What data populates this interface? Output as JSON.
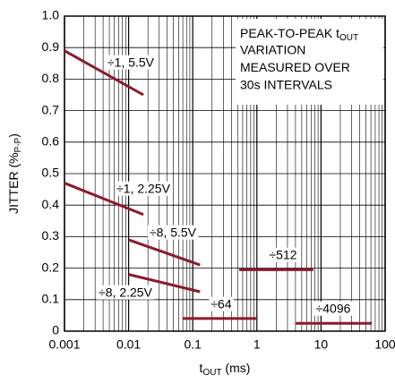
{
  "chart_data": {
    "type": "line",
    "x_label": {
      "text": "t",
      "sub": "OUT",
      "after": " (ms)"
    },
    "y_label": {
      "text": "JITTER (%",
      "sub": "P-P",
      "after": ")"
    },
    "annotation": {
      "first": "PEAK-TO-PEAK t",
      "first_sub": "OUT",
      "lines": [
        "VARIATION",
        "MEASURED OVER",
        "30s INTERVALS"
      ]
    },
    "xlog": true,
    "grid": true,
    "xlim": [
      0.001,
      100
    ],
    "xticks": [
      0.001,
      0.01,
      0.1,
      1,
      10,
      100
    ],
    "ylim": [
      0,
      1
    ],
    "yticks": [
      0,
      0.1,
      0.2,
      0.3,
      0.4,
      0.5,
      0.6,
      0.7,
      0.8,
      0.9,
      {
        "value": 1,
        "label": "1.0"
      }
    ],
    "series": [
      {
        "name": "÷1, 5.5V",
        "color": "#8b1a2b",
        "x": [
          0.001,
          0.017
        ],
        "values": [
          0.89,
          0.75
        ]
      },
      {
        "name": "÷1, 2.25V",
        "color": "#8b1a2b",
        "x": [
          0.001,
          0.017
        ],
        "values": [
          0.47,
          0.37
        ]
      },
      {
        "name": "÷8, 5.5V",
        "color": "#8b1a2b",
        "x": [
          0.01,
          0.13
        ],
        "values": [
          0.29,
          0.21
        ]
      },
      {
        "name": "÷8, 2.25V",
        "color": "#8b1a2b",
        "x": [
          0.01,
          0.13
        ],
        "values": [
          0.18,
          0.125
        ]
      },
      {
        "name": "÷64",
        "color": "#8b1a2b",
        "x": [
          0.07,
          1
        ],
        "values": [
          0.04,
          0.04
        ]
      },
      {
        "name": "÷512",
        "color": "#8b1a2b",
        "x": [
          0.53,
          7.6
        ],
        "values": [
          0.195,
          0.195
        ]
      },
      {
        "name": "÷4096",
        "color": "#8b1a2b",
        "x": [
          4,
          62
        ],
        "values": [
          0.025,
          0.025
        ]
      }
    ]
  }
}
